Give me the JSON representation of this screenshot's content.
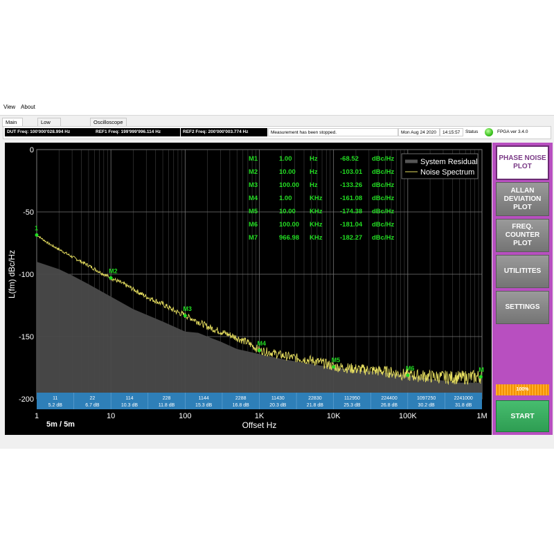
{
  "menu": {
    "items": [
      "View",
      "About"
    ]
  },
  "tabs": [
    {
      "label": "Main Board",
      "active": true
    },
    {
      "label": "Low Level Control",
      "active": false
    },
    {
      "label": "Oscilloscope",
      "active": false
    }
  ],
  "status": {
    "dut_freq": "DUT Freq: 100'000'028.994 Hz",
    "ref1_freq": "REF1 Freq: 199'999'996.114 Hz",
    "ref2_freq": "REF2 Freq: 200'000'003.774 Hz",
    "message": "Measurement has been stopped.",
    "date": "Mon Aug 24 2020",
    "time": "14:15:57",
    "status_label": "Status",
    "status_color": "#3cc21e",
    "fpga": "FPGA ver 3.4.0"
  },
  "sidebar": {
    "buttons": [
      {
        "label": "PHASE NOISE PLOT",
        "active": true
      },
      {
        "label": "ALLAN DEVIATION PLOT",
        "active": false
      },
      {
        "label": "FREQ. COUNTER PLOT",
        "active": false
      },
      {
        "label": "UTILITITES",
        "active": false
      },
      {
        "label": "SETTINGS",
        "active": false
      }
    ],
    "progress_value": 1.0,
    "progress_label": "100%",
    "start_label": "START",
    "panel_color": "#b84fc0"
  },
  "chart_data": {
    "type": "line",
    "xlabel": "Offset Hz",
    "ylabel": "L(fm) dBc/Hz",
    "x_scale": "log",
    "xlim": [
      1,
      1000000
    ],
    "ylim": [
      -200,
      0
    ],
    "x_ticks": [
      {
        "value": 1,
        "label": "1"
      },
      {
        "value": 10,
        "label": "10"
      },
      {
        "value": 100,
        "label": "100"
      },
      {
        "value": 1000,
        "label": "1K"
      },
      {
        "value": 10000,
        "label": "10K"
      },
      {
        "value": 100000,
        "label": "100K"
      },
      {
        "value": 1000000,
        "label": "1M"
      }
    ],
    "y_ticks": [
      {
        "value": 0,
        "label": "0"
      },
      {
        "value": -50,
        "label": "-50"
      },
      {
        "value": -100,
        "label": "-100"
      },
      {
        "value": -150,
        "label": "-150"
      },
      {
        "value": -200,
        "label": "-200"
      }
    ],
    "grid": true,
    "legend_position": "top-right",
    "time_label": "5m  / 5m",
    "series": [
      {
        "name": "Noise Spectrum",
        "color": "#e8e060",
        "style": "line",
        "x": [
          1,
          1.5,
          2,
          3,
          5,
          7,
          10,
          15,
          20,
          30,
          50,
          70,
          100,
          150,
          200,
          300,
          500,
          700,
          1000,
          1500,
          2000,
          3000,
          5000,
          7000,
          10000,
          20000,
          50000,
          100000,
          200000,
          500000,
          1000000
        ],
        "y": [
          -68.5,
          -76,
          -80,
          -86,
          -93,
          -98,
          -103,
          -108,
          -112,
          -118,
          -124,
          -129,
          -133,
          -138,
          -142,
          -146,
          -151,
          -155,
          -161,
          -163,
          -165,
          -167,
          -169,
          -171,
          -174,
          -176,
          -178,
          -181,
          -182,
          -183,
          -182
        ]
      },
      {
        "name": "System Residual",
        "color": "#3c3c3c",
        "style": "area",
        "x": [
          1,
          2,
          3,
          5,
          10,
          20,
          50,
          100,
          150,
          200,
          300,
          500,
          1000,
          2000,
          5000,
          10000,
          50000,
          100000,
          200000,
          500000,
          1000000
        ],
        "y": [
          -90,
          -96,
          -101,
          -108,
          -118,
          -128,
          -138,
          -146,
          -147,
          -150,
          -154,
          -160,
          -164,
          -168,
          -172,
          -175,
          -179,
          -181,
          -184,
          -187,
          -187
        ]
      }
    ],
    "markers": [
      {
        "name": "M1",
        "x": 1,
        "y": -68.52,
        "freq": "1.00",
        "unit": "Hz",
        "value": "-68.52",
        "value_unit": "dBc/Hz",
        "plot_label": "1"
      },
      {
        "name": "M2",
        "x": 10,
        "y": -103.01,
        "freq": "10.00",
        "unit": "Hz",
        "value": "-103.01",
        "value_unit": "dBc/Hz",
        "plot_label": "M2"
      },
      {
        "name": "M3",
        "x": 100,
        "y": -133.26,
        "freq": "100.00",
        "unit": "Hz",
        "value": "-133.26",
        "value_unit": "dBc/Hz",
        "plot_label": "M3"
      },
      {
        "name": "M4",
        "x": 1000,
        "y": -161.08,
        "freq": "1.00",
        "unit": "KHz",
        "value": "-161.08",
        "value_unit": "dBc/Hz",
        "plot_label": "M4"
      },
      {
        "name": "M5",
        "x": 10000,
        "y": -174.38,
        "freq": "10.00",
        "unit": "KHz",
        "value": "-174.38",
        "value_unit": "dBc/Hz",
        "plot_label": "M5"
      },
      {
        "name": "M6",
        "x": 100000,
        "y": -181.04,
        "freq": "100.00",
        "unit": "KHz",
        "value": "-181.04",
        "value_unit": "dBc/Hz",
        "plot_label": "M6"
      },
      {
        "name": "M7",
        "x": 966980,
        "y": -182.27,
        "freq": "966.98",
        "unit": "KHz",
        "value": "-182.27",
        "value_unit": "dBc/Hz",
        "plot_label": "M"
      }
    ],
    "integration_bands": [
      {
        "freq": "11",
        "db": "5.2 dB"
      },
      {
        "freq": "22",
        "db": "6.7 dB"
      },
      {
        "freq": "114",
        "db": "10.3 dB"
      },
      {
        "freq": "228",
        "db": "11.8 dB"
      },
      {
        "freq": "1144",
        "db": "15.3 dB"
      },
      {
        "freq": "2288",
        "db": "16.8 dB"
      },
      {
        "freq": "11430",
        "db": "20.3 dB"
      },
      {
        "freq": "22830",
        "db": "21.8 dB"
      },
      {
        "freq": "112950",
        "db": "25.3 dB"
      },
      {
        "freq": "224400",
        "db": "26.8 dB"
      },
      {
        "freq": "1097250",
        "db": "30.2 dB"
      },
      {
        "freq": "2241000",
        "db": "31.8 dB"
      }
    ],
    "band_color": "#2e7fb8",
    "marker_color": "#22dd22"
  }
}
